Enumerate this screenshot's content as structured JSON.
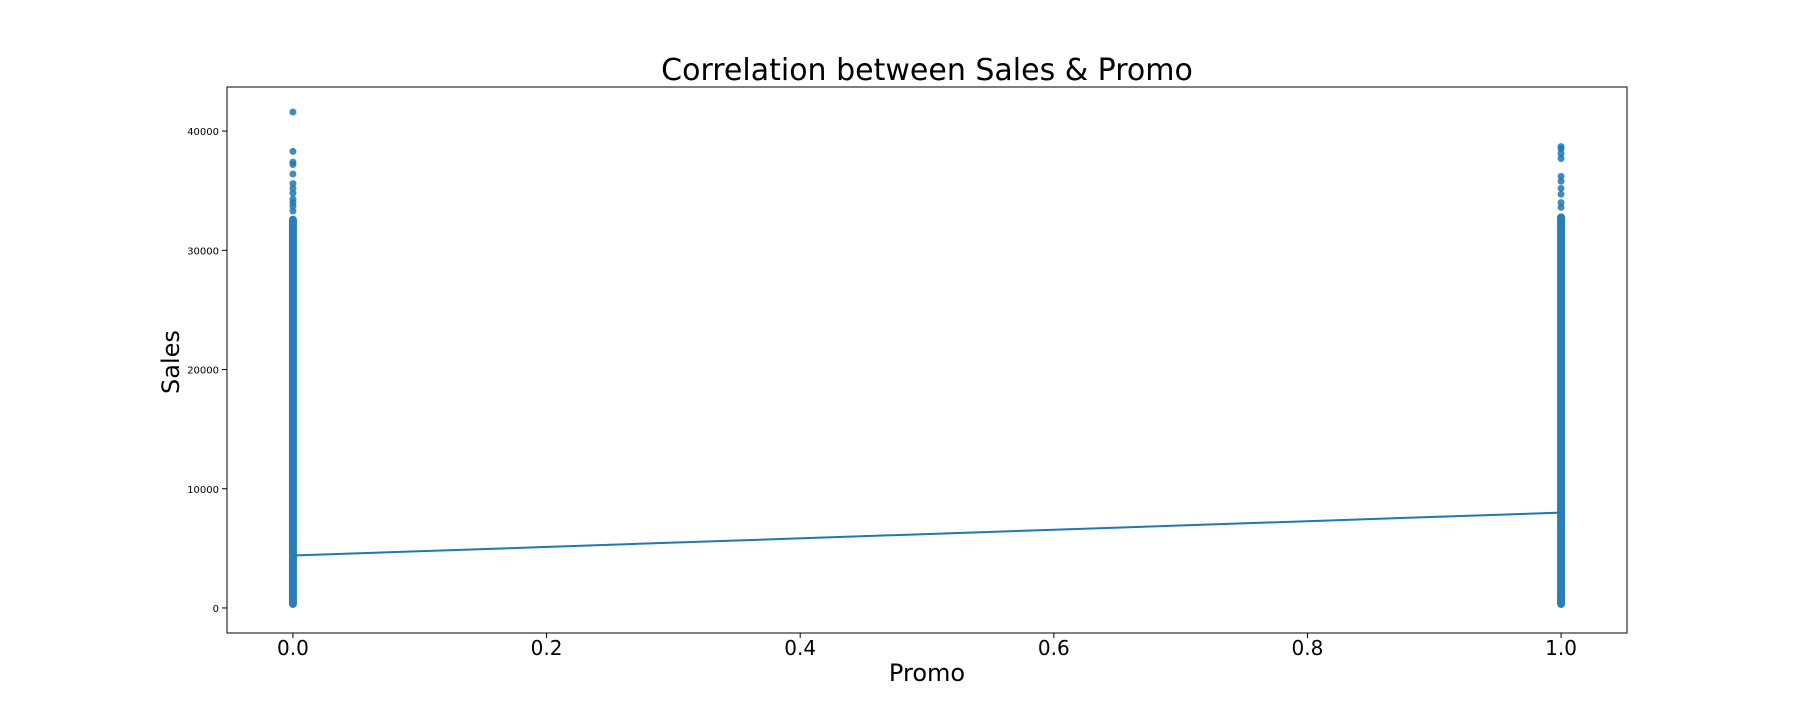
{
  "chart_data": {
    "type": "scatter",
    "title": "Correlation between Sales & Promo",
    "xlabel": "Promo",
    "ylabel": "Sales",
    "xlim": [
      -0.052,
      1.052
    ],
    "ylim": [
      -2100,
      43700
    ],
    "x_ticks": [
      0.0,
      0.2,
      0.4,
      0.6,
      0.8,
      1.0
    ],
    "x_tick_labels": [
      "0.0",
      "0.2",
      "0.4",
      "0.6",
      "0.8",
      "1.0"
    ],
    "y_ticks": [
      0,
      10000,
      20000,
      30000,
      40000
    ],
    "y_tick_labels": [
      "0",
      "10000",
      "20000",
      "30000",
      "40000"
    ],
    "grid": false,
    "colors": {
      "points": "#1f77b4",
      "line": "#1f77b4"
    },
    "series": [
      {
        "kind": "scatter",
        "groups": [
          {
            "x": 0,
            "range": [
              0,
              32900
            ],
            "outliers": [
              33300,
              33700,
              34000,
              34300,
              34800,
              35200,
              35600,
              36400,
              37200,
              37400,
              38300,
              41600
            ]
          },
          {
            "x": 1,
            "range": [
              0,
              33100
            ],
            "outliers": [
              33600,
              34000,
              34700,
              35200,
              35800,
              36200,
              37700,
              38100,
              38500,
              38700
            ]
          }
        ]
      },
      {
        "kind": "line",
        "x": [
          0,
          1
        ],
        "y": [
          4400,
          8000
        ]
      }
    ]
  }
}
